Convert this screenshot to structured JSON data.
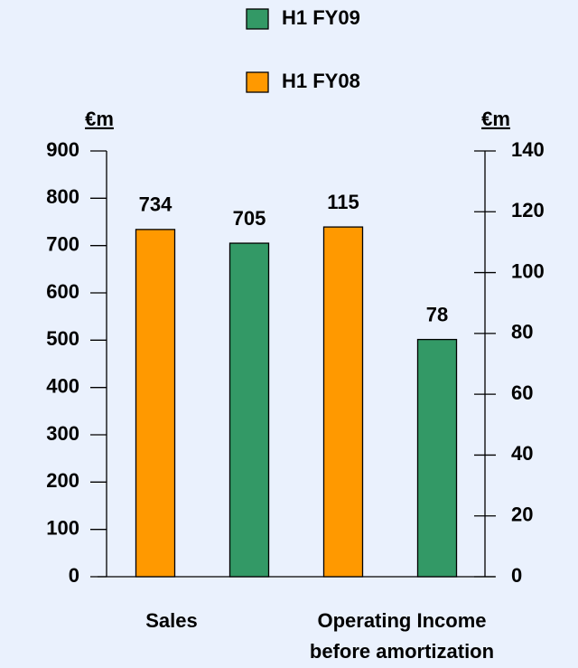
{
  "chart_data": {
    "type": "bar",
    "categories": [
      [
        "Sales"
      ],
      [
        "Operating Income",
        "before amortization"
      ]
    ],
    "category_axes": [
      "y",
      "y2"
    ],
    "series": [
      {
        "name": "H1 FY09",
        "color": "#339966",
        "values": [
          705,
          78
        ]
      },
      {
        "name": "H1 FY08",
        "color": "#ff9900",
        "values": [
          734,
          115
        ]
      }
    ],
    "bar_order": [
      1,
      0
    ],
    "ylabel": "€m",
    "y2label": "€m",
    "ylim": [
      0,
      900
    ],
    "yticks": [
      0,
      100,
      200,
      300,
      400,
      500,
      600,
      700,
      800,
      900
    ],
    "y2lim": [
      0,
      140
    ],
    "y2ticks": [
      0,
      20,
      40,
      60,
      80,
      100,
      120,
      140
    ],
    "legend": "top"
  }
}
